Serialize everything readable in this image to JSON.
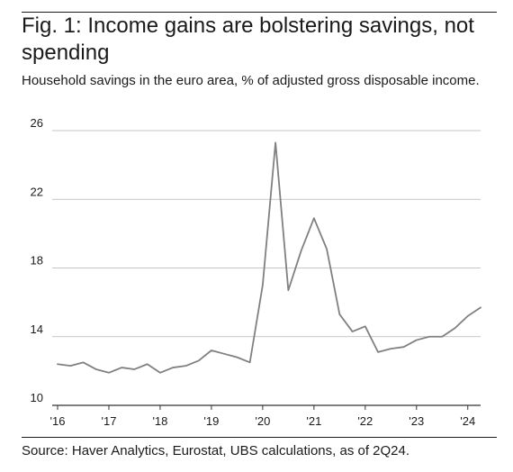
{
  "header": {
    "title": "Fig. 1: Income gains are bolstering savings, not spending",
    "subtitle": "Household savings in the euro area, % of adjusted gross disposable income."
  },
  "footer": {
    "source": "Source: Haver Analytics, Eurostat, UBS calculations, as of 2Q24."
  },
  "colors": {
    "line": "#808080",
    "grid": "#b3b3b3",
    "baseline": "#333333",
    "text": "#1a1a1a"
  },
  "chart_data": {
    "type": "line",
    "title": "Fig. 1: Income gains are bolstering savings, not spending",
    "subtitle": "Household savings in the euro area, % of adjusted gross disposable income.",
    "xlabel": "",
    "ylabel": "",
    "ylim": [
      10,
      26
    ],
    "yticks": [
      10,
      14,
      18,
      22,
      26
    ],
    "ytick_labels": [
      "10",
      "14",
      "18",
      "22",
      "26"
    ],
    "xlim": [
      "2016Q1",
      "2024Q2"
    ],
    "xticks": [
      "2016Q1",
      "2017Q1",
      "2018Q1",
      "2019Q1",
      "2020Q1",
      "2021Q1",
      "2022Q1",
      "2023Q1",
      "2024Q1"
    ],
    "xtick_labels": [
      "'16",
      "'17",
      "'18",
      "'19",
      "'20",
      "'21",
      "'22",
      "'23",
      "'24"
    ],
    "grid": "horizontal",
    "legend": "none",
    "x": [
      "2016Q1",
      "2016Q2",
      "2016Q3",
      "2016Q4",
      "2017Q1",
      "2017Q2",
      "2017Q3",
      "2017Q4",
      "2018Q1",
      "2018Q2",
      "2018Q3",
      "2018Q4",
      "2019Q1",
      "2019Q2",
      "2019Q3",
      "2019Q4",
      "2020Q1",
      "2020Q2",
      "2020Q3",
      "2020Q4",
      "2021Q1",
      "2021Q2",
      "2021Q3",
      "2021Q4",
      "2022Q1",
      "2022Q2",
      "2022Q3",
      "2022Q4",
      "2023Q1",
      "2023Q2",
      "2023Q3",
      "2023Q4",
      "2024Q1",
      "2024Q2"
    ],
    "series": [
      {
        "values": [
          12.4,
          12.3,
          12.5,
          12.1,
          11.9,
          12.2,
          12.1,
          12.4,
          11.9,
          12.2,
          12.3,
          12.6,
          13.2,
          13.0,
          12.8,
          12.5,
          17.0,
          25.3,
          16.7,
          19.0,
          20.9,
          19.1,
          15.3,
          14.3,
          14.6,
          13.1,
          13.3,
          13.4,
          13.8,
          14.0,
          14.0,
          14.5,
          15.2,
          15.7
        ]
      }
    ]
  }
}
